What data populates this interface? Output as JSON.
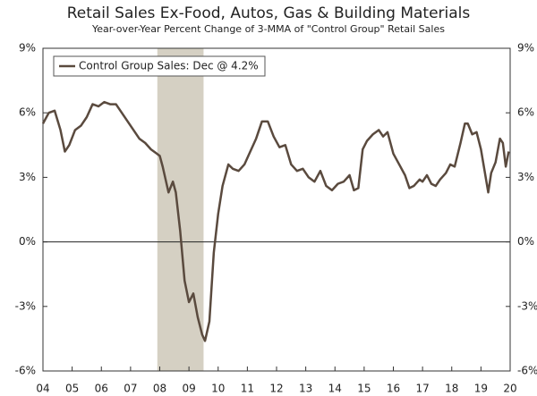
{
  "chart_data": {
    "type": "line",
    "title": "Retail Sales Ex-Food, Autos, Gas & Building Materials",
    "subtitle": "Year-over-Year Percent Change of 3-MMA of \"Control Group\" Retail Sales",
    "x": [
      2004.0,
      2004.2,
      2004.4,
      2004.6,
      2004.75,
      2004.9,
      2005.1,
      2005.3,
      2005.5,
      2005.7,
      2005.9,
      2006.1,
      2006.3,
      2006.5,
      2006.7,
      2006.9,
      2007.1,
      2007.3,
      2007.5,
      2007.7,
      2007.9,
      2008.0,
      2008.1,
      2008.3,
      2008.45,
      2008.55,
      2008.7,
      2008.85,
      2009.0,
      2009.15,
      2009.3,
      2009.45,
      2009.55,
      2009.7,
      2009.85,
      2010.0,
      2010.15,
      2010.35,
      2010.5,
      2010.7,
      2010.9,
      2011.1,
      2011.3,
      2011.5,
      2011.7,
      2011.9,
      2012.1,
      2012.3,
      2012.5,
      2012.7,
      2012.9,
      2013.1,
      2013.3,
      2013.5,
      2013.7,
      2013.9,
      2014.1,
      2014.3,
      2014.5,
      2014.65,
      2014.8,
      2014.95,
      2015.1,
      2015.3,
      2015.5,
      2015.65,
      2015.8,
      2016.0,
      2016.2,
      2016.4,
      2016.55,
      2016.7,
      2016.9,
      2017.0,
      2017.15,
      2017.3,
      2017.45,
      2017.6,
      2017.8,
      2017.95,
      2018.1,
      2018.3,
      2018.45,
      2018.55,
      2018.7,
      2018.85,
      2019.0,
      2019.1,
      2019.25,
      2019.35,
      2019.5,
      2019.65,
      2019.75,
      2019.85,
      2019.95
    ],
    "series": [
      {
        "name": "Control Group Sales: Dec @ 4.2%",
        "color": "#5a4a3e",
        "values": [
          5.5,
          6.0,
          6.1,
          5.2,
          4.2,
          4.5,
          5.2,
          5.4,
          5.8,
          6.4,
          6.3,
          6.5,
          6.4,
          6.4,
          6.0,
          5.6,
          5.2,
          4.8,
          4.6,
          4.3,
          4.1,
          4.0,
          3.5,
          2.3,
          2.8,
          2.3,
          0.5,
          -1.8,
          -2.8,
          -2.4,
          -3.5,
          -4.3,
          -4.6,
          -3.7,
          -0.5,
          1.3,
          2.6,
          3.6,
          3.4,
          3.3,
          3.6,
          4.2,
          4.8,
          5.6,
          5.6,
          4.9,
          4.4,
          4.5,
          3.6,
          3.3,
          3.4,
          3.0,
          2.8,
          3.3,
          2.6,
          2.4,
          2.7,
          2.8,
          3.1,
          2.4,
          2.5,
          4.3,
          4.7,
          5.0,
          5.2,
          4.9,
          5.1,
          4.1,
          3.6,
          3.1,
          2.5,
          2.6,
          2.9,
          2.8,
          3.1,
          2.7,
          2.6,
          2.9,
          3.2,
          3.6,
          3.5,
          4.6,
          5.5,
          5.5,
          5.0,
          5.1,
          4.3,
          3.5,
          2.3,
          3.2,
          3.7,
          4.8,
          4.6,
          3.5,
          4.2
        ]
      }
    ],
    "recession": [
      2007.917,
      2009.5
    ],
    "recession_color": "#d5d0c3",
    "xlim": [
      2004,
      2020
    ],
    "xticks": [
      {
        "value": 2004,
        "label": "04"
      },
      {
        "value": 2005,
        "label": "05"
      },
      {
        "value": 2006,
        "label": "06"
      },
      {
        "value": 2007,
        "label": "07"
      },
      {
        "value": 2008,
        "label": "08"
      },
      {
        "value": 2009,
        "label": "09"
      },
      {
        "value": 2010,
        "label": "10"
      },
      {
        "value": 2011,
        "label": "11"
      },
      {
        "value": 2012,
        "label": "12"
      },
      {
        "value": 2013,
        "label": "13"
      },
      {
        "value": 2014,
        "label": "14"
      },
      {
        "value": 2015,
        "label": "15"
      },
      {
        "value": 2016,
        "label": "16"
      },
      {
        "value": 2017,
        "label": "17"
      },
      {
        "value": 2018,
        "label": "18"
      },
      {
        "value": 2019,
        "label": "19"
      },
      {
        "value": 2020,
        "label": "20"
      }
    ],
    "ylim": [
      -6,
      9
    ],
    "yticks": [
      {
        "value": -6,
        "label": "-6%"
      },
      {
        "value": -3,
        "label": "-3%"
      },
      {
        "value": 0,
        "label": "0%"
      },
      {
        "value": 3,
        "label": "3%"
      },
      {
        "value": 6,
        "label": "6%"
      },
      {
        "value": 9,
        "label": "9%"
      }
    ],
    "y2lim": [
      -6,
      9
    ],
    "y2ticks": [
      {
        "value": -6,
        "label": "-6%"
      },
      {
        "value": -3,
        "label": "-3%"
      },
      {
        "value": 0,
        "label": "0%"
      },
      {
        "value": 3,
        "label": "3%"
      },
      {
        "value": 6,
        "label": "6%"
      },
      {
        "value": 9,
        "label": "9%"
      }
    ],
    "legend": "top-left"
  }
}
